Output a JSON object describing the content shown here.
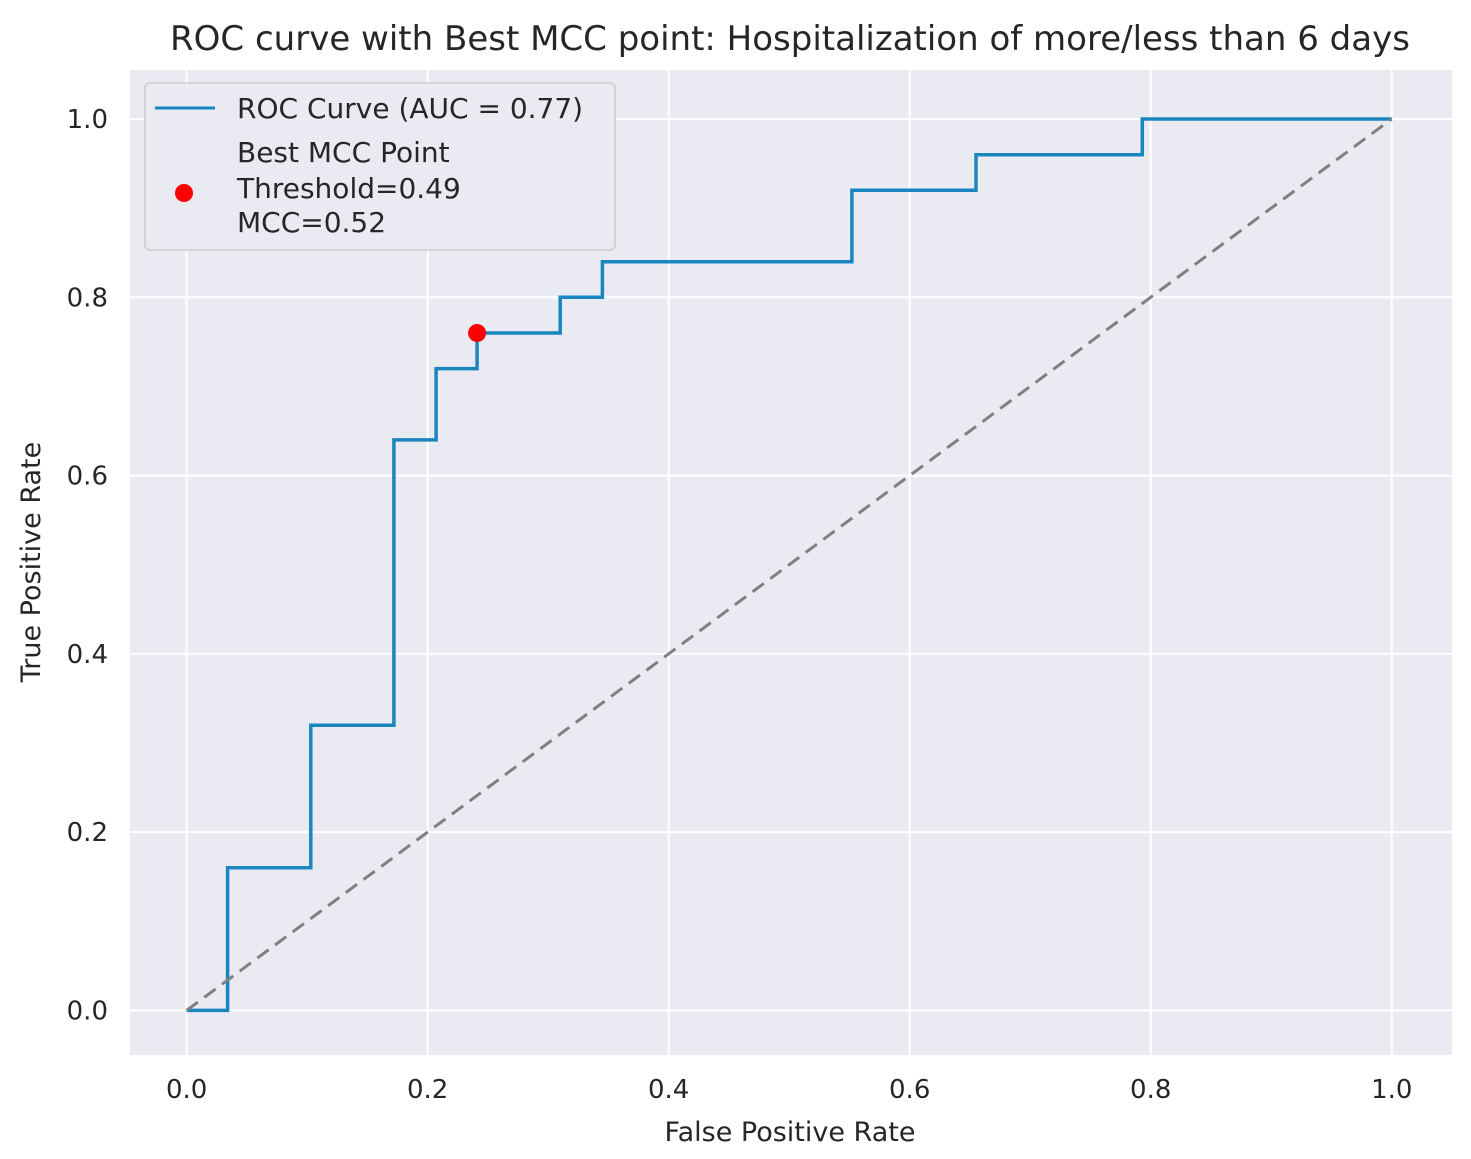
{
  "chart_data": {
    "type": "line",
    "title": "ROC curve with Best MCC point: Hospitalization of more/less than 6 days",
    "xlabel": "False Positive Rate",
    "ylabel": "True Positive Rate",
    "xlim": [
      -0.047,
      1.05
    ],
    "ylim": [
      -0.05,
      1.055
    ],
    "xticks": [
      0.0,
      0.2,
      0.4,
      0.6,
      0.8,
      1.0
    ],
    "xtick_labels": [
      "0.0",
      "0.2",
      "0.4",
      "0.6",
      "0.8",
      "1.0"
    ],
    "yticks": [
      0.0,
      0.2,
      0.4,
      0.6,
      0.8,
      1.0
    ],
    "ytick_labels": [
      "0.0",
      "0.2",
      "0.4",
      "0.6",
      "0.8",
      "1.0"
    ],
    "grid": true,
    "legend_position": "upper-left",
    "background_color": "#eaeaf2",
    "series": [
      {
        "name": "ROC Curve (AUC = 0.77)",
        "kind": "line",
        "color": "#1a86c0",
        "x": [
          0.0,
          0.034,
          0.034,
          0.103,
          0.103,
          0.172,
          0.172,
          0.207,
          0.207,
          0.241,
          0.241,
          0.31,
          0.31,
          0.345,
          0.345,
          0.552,
          0.552,
          0.655,
          0.655,
          0.793,
          0.793,
          1.0
        ],
        "y": [
          0.0,
          0.0,
          0.16,
          0.16,
          0.32,
          0.32,
          0.64,
          0.64,
          0.72,
          0.72,
          0.76,
          0.76,
          0.8,
          0.8,
          0.84,
          0.84,
          0.92,
          0.92,
          0.96,
          0.96,
          1.0,
          1.0
        ]
      },
      {
        "name": "",
        "kind": "dashed-line",
        "color": "#808080",
        "x": [
          0.0,
          1.0
        ],
        "y": [
          0.0,
          1.0
        ]
      },
      {
        "name": "Best MCC Point",
        "kind": "point",
        "color": "#ff0000",
        "x": [
          0.241
        ],
        "y": [
          0.76
        ]
      }
    ],
    "legend": {
      "entries": [
        {
          "label": "ROC Curve (AUC = 0.77)",
          "marker": "line",
          "color": "#1a86c0"
        },
        {
          "label_lines": [
            "Best MCC Point",
            "Threshold=0.49",
            "MCC=0.52"
          ],
          "marker": "dot",
          "color": "#ff0000"
        }
      ]
    }
  }
}
